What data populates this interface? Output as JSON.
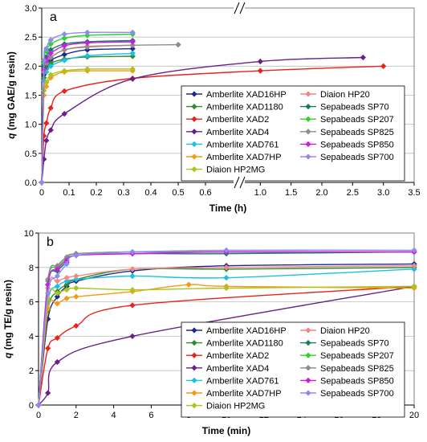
{
  "chart_data": [
    {
      "type": "line",
      "panel_label": "a",
      "xlabel": "Time (h)",
      "ylabel_var": "q",
      "ylabel_units": "(mg GAE/g resin)",
      "xlim": [
        0,
        3.5
      ],
      "ylim": [
        0,
        3.0
      ],
      "axis_break": {
        "left_xlim": [
          0,
          0.7
        ],
        "right_xlim": [
          0.8,
          3.5
        ]
      },
      "x_tick_labels": [
        {
          "value": 0,
          "label": "0"
        },
        {
          "value": 0.1,
          "label": "0.1"
        },
        {
          "value": 0.2,
          "label": "0.2"
        },
        {
          "value": 0.3,
          "label": "0.3"
        },
        {
          "value": 0.4,
          "label": "0.4"
        },
        {
          "value": 0.5,
          "label": "0.5"
        },
        {
          "value": 0.6,
          "label": "0.6"
        },
        {
          "value": 1.0,
          "label": "1.0"
        },
        {
          "value": 1.5,
          "label": "1.5"
        },
        {
          "value": 2.0,
          "label": "2.0"
        },
        {
          "value": 2.5,
          "label": "2.5"
        },
        {
          "value": 3.0,
          "label": "3.0"
        },
        {
          "value": 3.5,
          "label": "3.5"
        }
      ],
      "y_tick_labels": [
        "0.0",
        "0.5",
        "1.0",
        "1.5",
        "2.0",
        "2.5",
        "3.0"
      ],
      "grid": "horizontal",
      "legend_position": "bottom-right",
      "series": [
        {
          "name": "Amberlite XAD16HP",
          "color": "#1f2a8c",
          "marker": "diamond",
          "x": [
            0,
            0.008,
            0.017,
            0.033,
            0.083,
            0.167,
            0.333
          ],
          "y": [
            0,
            1.85,
            2.0,
            2.1,
            2.2,
            2.28,
            2.3
          ]
        },
        {
          "name": "Amberlite XAD1180",
          "color": "#2e8b2e",
          "marker": "diamond",
          "x": [
            0,
            0.008,
            0.017,
            0.033,
            0.083,
            0.167,
            0.333
          ],
          "y": [
            0,
            1.8,
            1.95,
            2.05,
            2.12,
            2.16,
            2.17
          ]
        },
        {
          "name": "Amberlite XAD2",
          "color": "#e8231c",
          "marker": "diamond",
          "x": [
            0,
            0.008,
            0.017,
            0.033,
            0.083,
            0.333,
            1.0,
            3.0
          ],
          "y": [
            0,
            0.8,
            1.02,
            1.28,
            1.57,
            1.79,
            1.92,
            2.0
          ]
        },
        {
          "name": "Amberlite XAD4",
          "color": "#6a1f8a",
          "marker": "diamond",
          "x": [
            0,
            0.008,
            0.017,
            0.033,
            0.083,
            0.333,
            1.0,
            2.67
          ],
          "y": [
            0,
            0.4,
            0.72,
            0.9,
            1.18,
            1.78,
            2.08,
            2.15
          ]
        },
        {
          "name": "Amberlite XAD761",
          "color": "#18c0e6",
          "marker": "diamond",
          "x": [
            0,
            0.008,
            0.017,
            0.033,
            0.083,
            0.167,
            0.333
          ],
          "y": [
            0,
            1.75,
            1.9,
            2.0,
            2.1,
            2.18,
            2.22
          ]
        },
        {
          "name": "Amberlite XAD7HP",
          "color": "#f59a12",
          "marker": "diamond",
          "x": [
            0,
            0.008,
            0.017,
            0.033,
            0.083,
            0.167,
            0.333
          ],
          "y": [
            0,
            1.5,
            1.65,
            1.8,
            1.9,
            1.92,
            1.92
          ]
        },
        {
          "name": "Diaion HP2MG",
          "color": "#a6c61b",
          "marker": "diamond",
          "x": [
            0,
            0.008,
            0.017,
            0.033,
            0.083,
            0.167,
            0.333
          ],
          "y": [
            0,
            1.58,
            1.72,
            1.85,
            1.92,
            1.95,
            1.95
          ]
        },
        {
          "name": "Diaion HP20",
          "color": "#f08a80",
          "marker": "diamond",
          "x": [
            0,
            0.008,
            0.017,
            0.033,
            0.083,
            0.167,
            0.333
          ],
          "y": [
            0,
            1.9,
            2.05,
            2.15,
            2.28,
            2.34,
            2.36
          ]
        },
        {
          "name": "Sepabeads SP70",
          "color": "#157a6a",
          "marker": "diamond",
          "x": [
            0,
            0.008,
            0.017,
            0.033,
            0.083,
            0.167,
            0.333
          ],
          "y": [
            0,
            2.0,
            2.15,
            2.28,
            2.38,
            2.42,
            2.44
          ]
        },
        {
          "name": "Sepabeads SP207",
          "color": "#2fd12f",
          "marker": "diamond",
          "x": [
            0,
            0.008,
            0.017,
            0.033,
            0.083,
            0.167,
            0.333
          ],
          "y": [
            0,
            2.05,
            2.25,
            2.38,
            2.48,
            2.53,
            2.55
          ]
        },
        {
          "name": "Sepabeads SP825",
          "color": "#8c8c8c",
          "marker": "diamond",
          "x": [
            0,
            0.008,
            0.017,
            0.033,
            0.083,
            0.167,
            0.333,
            0.5
          ],
          "y": [
            0,
            1.9,
            2.05,
            2.15,
            2.28,
            2.33,
            2.36,
            2.37
          ]
        },
        {
          "name": "Sepabeads SP850",
          "color": "#d11ae0",
          "marker": "diamond",
          "x": [
            0,
            0.008,
            0.017,
            0.033,
            0.083,
            0.167,
            0.333
          ],
          "y": [
            0,
            1.95,
            2.1,
            2.22,
            2.35,
            2.4,
            2.42
          ]
        },
        {
          "name": "Sepabeads SP700",
          "color": "#8c8cf0",
          "marker": "diamond",
          "x": [
            0,
            0.008,
            0.017,
            0.033,
            0.083,
            0.167,
            0.333
          ],
          "y": [
            0,
            2.1,
            2.3,
            2.45,
            2.55,
            2.58,
            2.58
          ]
        }
      ]
    },
    {
      "type": "line",
      "panel_label": "b",
      "xlabel": "Time (min)",
      "ylabel_var": "q",
      "ylabel_units": "(mg TE/g resin)",
      "xlim": [
        0,
        20
      ],
      "ylim": [
        0,
        10
      ],
      "x_tick_labels": [
        "0",
        "2",
        "4",
        "6",
        "8",
        "10",
        "12",
        "14",
        "16",
        "18",
        "20"
      ],
      "y_tick_labels": [
        "0",
        "2",
        "4",
        "6",
        "8",
        "10"
      ],
      "grid": "horizontal",
      "legend_position": "bottom-right",
      "series": [
        {
          "name": "Amberlite XAD16HP",
          "color": "#1f2a8c",
          "marker": "diamond",
          "x": [
            0,
            0.5,
            1,
            1.5,
            2,
            5,
            10,
            20
          ],
          "y": [
            0,
            5.0,
            6.3,
            6.9,
            7.2,
            7.8,
            8.1,
            8.2
          ]
        },
        {
          "name": "Amberlite XAD1180",
          "color": "#2e8b2e",
          "marker": "diamond",
          "x": [
            0,
            0.5,
            1,
            1.5,
            2,
            5,
            10,
            20
          ],
          "y": [
            0,
            5.5,
            6.6,
            7.0,
            7.3,
            7.9,
            7.9,
            8.0
          ]
        },
        {
          "name": "Amberlite XAD2",
          "color": "#e8231c",
          "marker": "diamond",
          "x": [
            0,
            0.5,
            1,
            2,
            5,
            20
          ],
          "y": [
            0,
            3.3,
            3.9,
            4.6,
            5.8,
            6.9
          ]
        },
        {
          "name": "Amberlite XAD4",
          "color": "#6a1f8a",
          "marker": "diamond",
          "x": [
            0,
            0.5,
            1,
            5,
            20
          ],
          "y": [
            0,
            0.7,
            2.5,
            4.0,
            6.9
          ]
        },
        {
          "name": "Amberlite XAD761",
          "color": "#18c0e6",
          "marker": "diamond",
          "x": [
            0,
            0.5,
            1,
            1.5,
            2,
            5,
            10,
            20
          ],
          "y": [
            0,
            6.0,
            6.9,
            7.2,
            7.3,
            7.5,
            7.4,
            7.9
          ]
        },
        {
          "name": "Amberlite XAD7HP",
          "color": "#f59a12",
          "marker": "diamond",
          "x": [
            0,
            0.5,
            1,
            1.5,
            2,
            5,
            8,
            10,
            20
          ],
          "y": [
            0,
            5.6,
            5.9,
            6.2,
            6.3,
            6.6,
            7.0,
            6.9,
            6.8
          ]
        },
        {
          "name": "Diaion HP2MG",
          "color": "#a6c61b",
          "marker": "diamond",
          "x": [
            0,
            0.5,
            1,
            1.5,
            2,
            5,
            10,
            20
          ],
          "y": [
            0,
            6.2,
            6.5,
            6.7,
            6.8,
            6.7,
            6.8,
            6.9
          ]
        },
        {
          "name": "Diaion HP20",
          "color": "#f08a80",
          "marker": "diamond",
          "x": [
            0,
            0.5,
            1,
            1.5,
            2,
            5,
            10,
            20
          ],
          "y": [
            0,
            6.8,
            7.2,
            7.4,
            7.5,
            7.9,
            8.0,
            8.1
          ]
        },
        {
          "name": "Sepabeads SP70",
          "color": "#157a6a",
          "marker": "diamond",
          "x": [
            0,
            0.5,
            1,
            1.5,
            2,
            5,
            10,
            20
          ],
          "y": [
            0,
            7.0,
            7.8,
            8.3,
            8.7,
            8.8,
            8.8,
            8.9
          ]
        },
        {
          "name": "Sepabeads SP207",
          "color": "#2fd12f",
          "marker": "diamond",
          "x": [
            0,
            0.5,
            1,
            1.5,
            2,
            5,
            10,
            20
          ],
          "y": [
            0,
            7.2,
            8.0,
            8.5,
            8.8,
            8.9,
            8.9,
            8.9
          ]
        },
        {
          "name": "Sepabeads SP825",
          "color": "#8c8c8c",
          "marker": "diamond",
          "x": [
            0,
            0.5,
            1,
            1.5,
            2,
            5,
            10,
            20
          ],
          "y": [
            0,
            7.3,
            8.1,
            8.6,
            8.8,
            8.9,
            8.9,
            8.9
          ]
        },
        {
          "name": "Sepabeads SP850",
          "color": "#d11ae0",
          "marker": "diamond",
          "x": [
            0,
            0.5,
            1,
            1.5,
            2,
            5,
            10,
            20
          ],
          "y": [
            0,
            7.0,
            7.9,
            8.4,
            8.7,
            8.8,
            8.9,
            8.9
          ]
        },
        {
          "name": "Sepabeads SP700",
          "color": "#8c8cf0",
          "marker": "diamond",
          "x": [
            0,
            0.5,
            1,
            1.5,
            2,
            5,
            10,
            20
          ],
          "y": [
            0,
            6.5,
            7.5,
            8.2,
            8.7,
            8.9,
            9.0,
            9.0
          ]
        }
      ]
    }
  ]
}
